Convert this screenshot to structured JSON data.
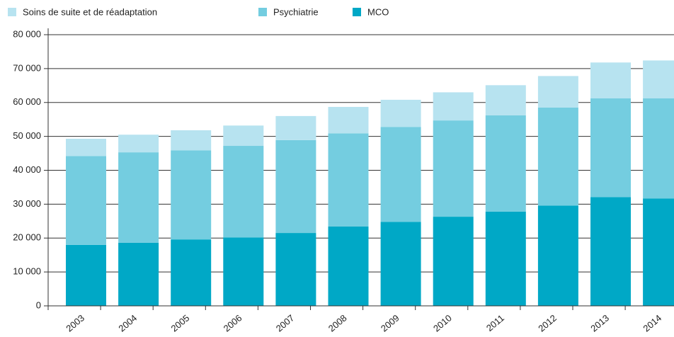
{
  "chart_data": {
    "type": "stacked_bar",
    "categories": [
      "2003",
      "2004",
      "2005",
      "2006",
      "2007",
      "2008",
      "2009",
      "2010",
      "2011",
      "2012",
      "2013",
      "2014"
    ],
    "series": [
      {
        "name": "MCO",
        "color": "#00a8c6",
        "values": [
          18000,
          18600,
          19600,
          20200,
          21500,
          23400,
          24800,
          26300,
          27800,
          29600,
          32100,
          31700
        ]
      },
      {
        "name": "Psychiatrie",
        "color": "#74cde0",
        "values": [
          26200,
          26700,
          26300,
          27000,
          27400,
          27500,
          28000,
          28400,
          28400,
          28900,
          29100,
          29500
        ]
      },
      {
        "name": "Soins de suite et de réadaptation",
        "color": "#b7e3f0",
        "values": [
          5100,
          5200,
          5900,
          6000,
          7100,
          7800,
          8000,
          8300,
          8900,
          9300,
          10600,
          11200
        ]
      }
    ],
    "ylim": [
      0,
      80000
    ],
    "yticks": [
      0,
      {
        "value": 10000,
        "label": "10 000"
      },
      {
        "value": 20000,
        "label": "20 000"
      },
      {
        "value": 30000,
        "label": "30 000"
      },
      {
        "value": 40000,
        "label": "40 000"
      },
      {
        "value": 50000,
        "label": "50 000"
      },
      {
        "value": 60000,
        "label": "60 000"
      },
      {
        "value": 70000,
        "label": "70 000"
      },
      {
        "value": 80000,
        "label": "80 000"
      }
    ],
    "grid": true,
    "legend": "top"
  }
}
